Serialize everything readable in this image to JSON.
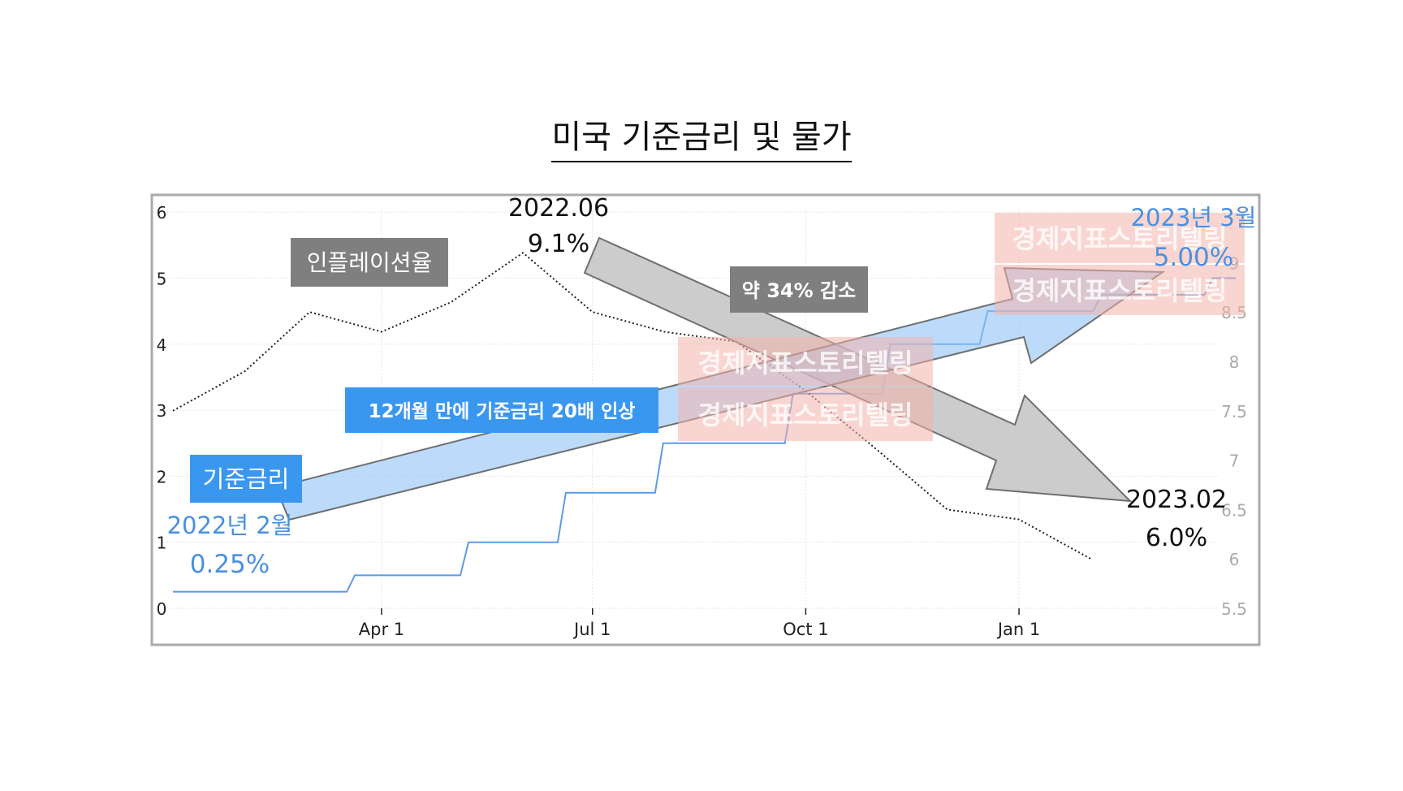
{
  "title": "미국 기준금리 및 물가",
  "chart_data": {
    "type": "line",
    "x_ticks": [
      "Apr 1",
      "Jul 1",
      "Oct 1",
      "Jan 1"
    ],
    "y_left_ticks": [
      "0",
      "1",
      "2",
      "3",
      "4",
      "5",
      "6"
    ],
    "y_left_range": [
      0,
      6
    ],
    "y_right_ticks": [
      "5.5",
      "6",
      "6.5",
      "7",
      "7.5",
      "8",
      "8.5",
      "9"
    ],
    "y_right_range": [
      5.5,
      9.5
    ],
    "grid": true,
    "series": [
      {
        "axis": "left",
        "style": "step",
        "color": "#5b9be6",
        "x": [
          "2022-01-01",
          "2022-02-01",
          "2022-03-17",
          "2022-05-05",
          "2022-06-16",
          "2022-07-28",
          "2022-09-22",
          "2022-11-03",
          "2022-12-15",
          "2023-02-02",
          "2023-03-22",
          "2023-04-01"
        ],
        "values": [
          0.25,
          0.25,
          0.5,
          1.0,
          1.75,
          2.5,
          3.25,
          4.0,
          4.5,
          4.75,
          5.0,
          5.0
        ]
      },
      {
        "axis": "right",
        "style": "dotted",
        "color": "#222222",
        "x": [
          "2022-01-01",
          "2022-02-01",
          "2022-03-01",
          "2022-04-01",
          "2022-05-01",
          "2022-06-01",
          "2022-07-01",
          "2022-08-01",
          "2022-09-01",
          "2022-10-01",
          "2022-11-01",
          "2022-12-01",
          "2023-01-01",
          "2023-02-01"
        ],
        "values": [
          7.5,
          7.9,
          8.5,
          8.3,
          8.6,
          9.1,
          8.5,
          8.3,
          8.2,
          7.7,
          7.1,
          6.5,
          6.4,
          6.0
        ]
      }
    ],
    "annotations": {
      "inflation_label": "인플레이션율",
      "rate_label": "기준금리",
      "peak_date": "2022.06",
      "peak_value": "9.1%",
      "start_date": "2022년 2월",
      "start_value": "0.25%",
      "end_rate_date": "2023년 3월",
      "end_rate_value": "5.00%",
      "end_cpi_date": "2023.02",
      "end_cpi_value": "6.0%",
      "decrease_note": "약 34% 감소",
      "increase_note": "12개월 만에 기준금리 20배 인상",
      "watermark": "경제지표스토리텔링"
    },
    "colors": {
      "rate": "#5b9be6",
      "rate_label_bg": "#3a97f0",
      "rate_text": "#4a90e2",
      "gray_box": "#7f7f7f",
      "frame": "#aaaaaa",
      "watermark": "#f4b3ac"
    }
  }
}
